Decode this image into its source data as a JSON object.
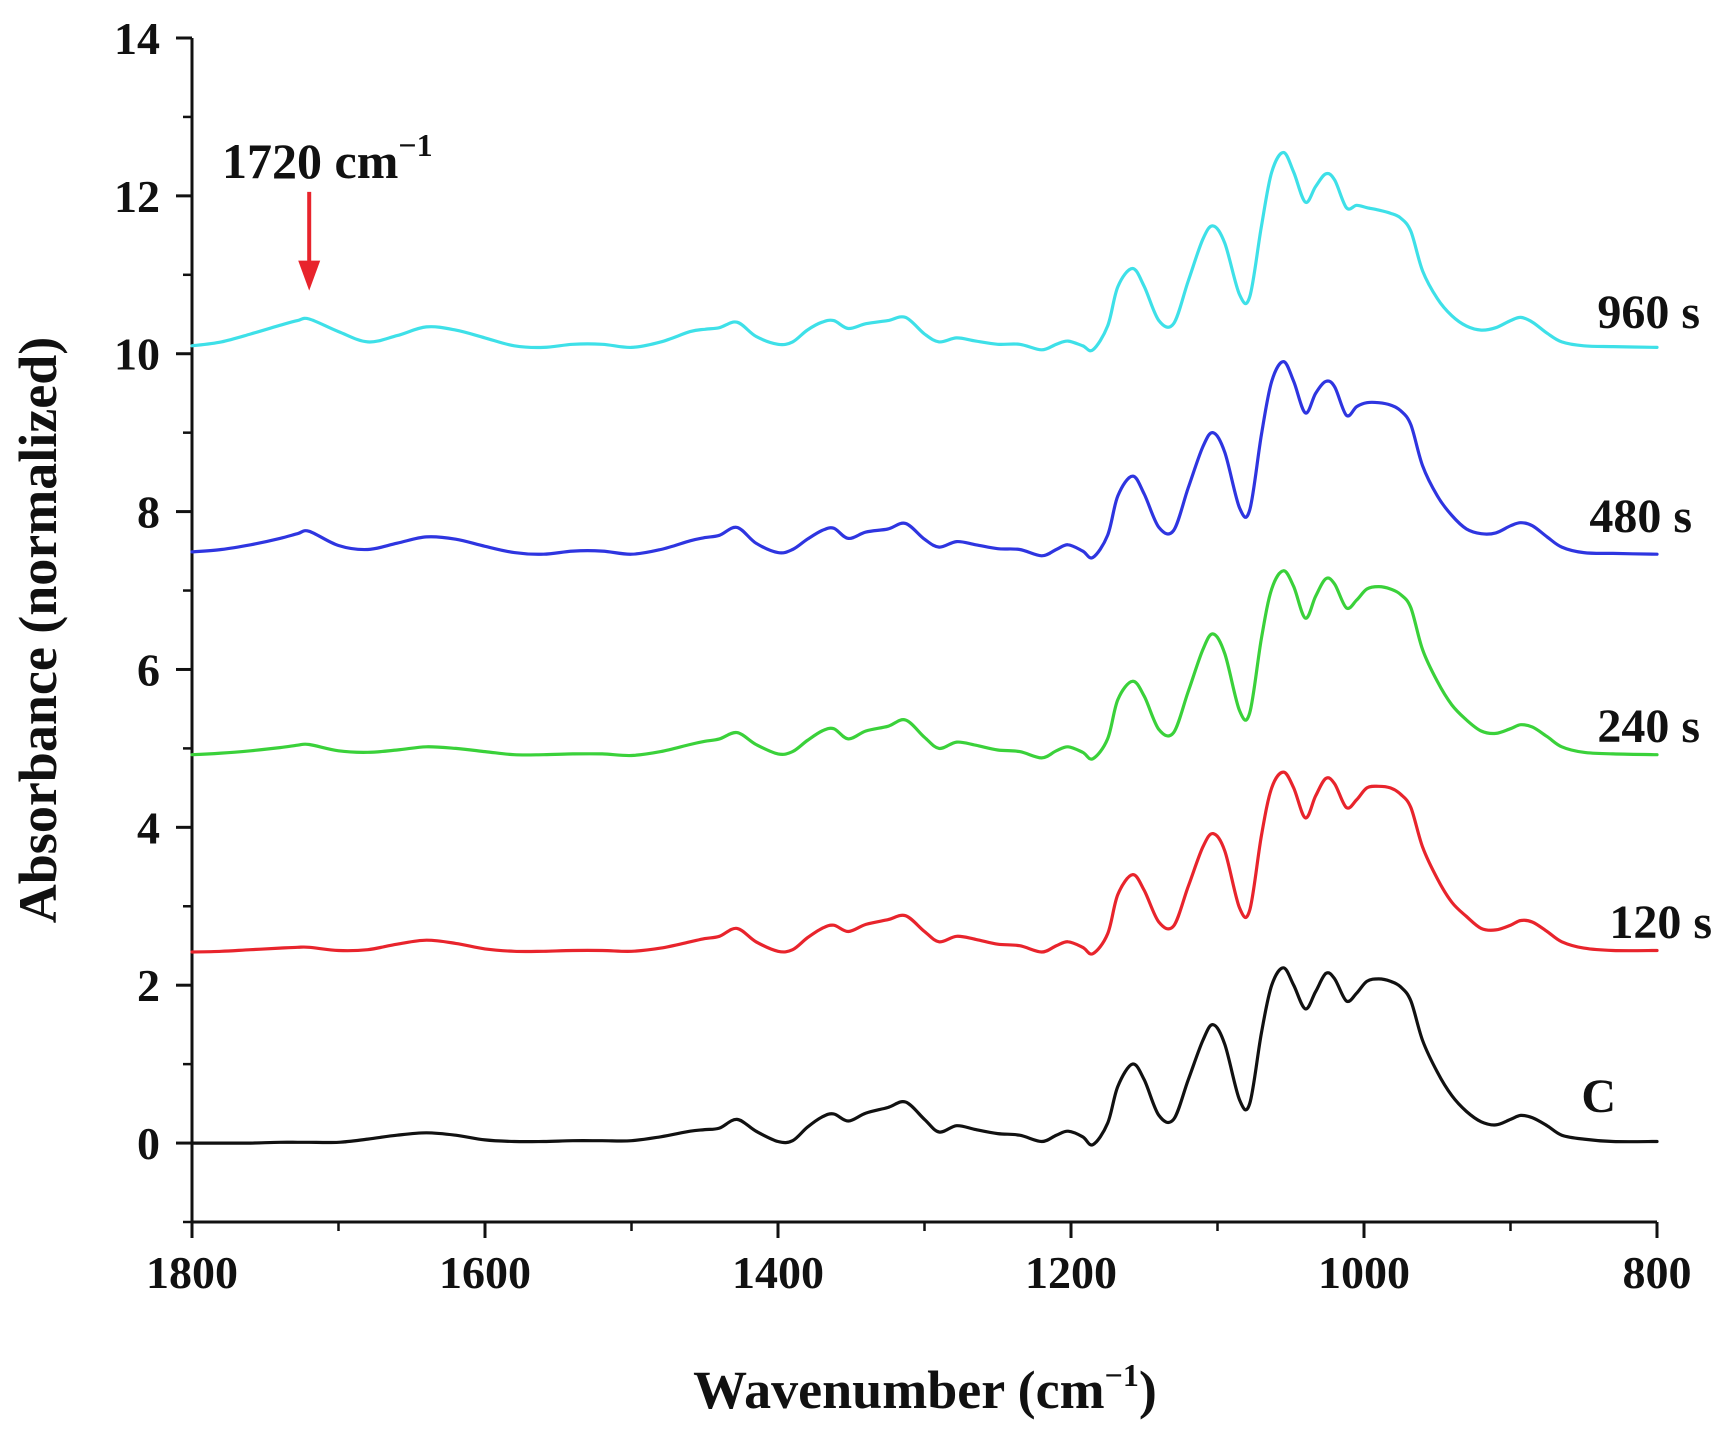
{
  "chart_data": {
    "type": "line",
    "title": "",
    "xlabel": "Wavenumber (cm",
    "xlabel_sup": "−1",
    "xlabel_close": ")",
    "ylabel": "Absorbance (normalized)",
    "xlim": [
      1800,
      800
    ],
    "ylim": [
      -1,
      14
    ],
    "x_reversed": true,
    "grid": false,
    "xticks": [
      "1800",
      "1600",
      "1400",
      "1200",
      "1000",
      "800"
    ],
    "yticks": [
      "0",
      "2",
      "4",
      "6",
      "8",
      "10",
      "12",
      "14"
    ],
    "x": [
      1800,
      1780,
      1760,
      1740,
      1728,
      1720,
      1700,
      1680,
      1660,
      1640,
      1620,
      1600,
      1580,
      1560,
      1540,
      1520,
      1500,
      1480,
      1460,
      1450,
      1440,
      1428,
      1415,
      1400,
      1390,
      1380,
      1370,
      1362,
      1352,
      1340,
      1325,
      1313,
      1300,
      1290,
      1278,
      1265,
      1250,
      1235,
      1220,
      1210,
      1202,
      1192,
      1185,
      1175,
      1168,
      1158,
      1150,
      1140,
      1130,
      1120,
      1110,
      1103,
      1095,
      1085,
      1078,
      1070,
      1063,
      1055,
      1048,
      1040,
      1033,
      1026,
      1020,
      1012,
      1005,
      998,
      990,
      982,
      975,
      968,
      960,
      950,
      940,
      930,
      920,
      910,
      900,
      893,
      885,
      875,
      865,
      850,
      830,
      800
    ],
    "series": [
      {
        "name": "C",
        "label": "C",
        "color": "#111111",
        "values": [
          0.0,
          0.0,
          0.0,
          0.01,
          0.01,
          0.01,
          0.01,
          0.05,
          0.1,
          0.13,
          0.1,
          0.04,
          0.02,
          0.02,
          0.03,
          0.03,
          0.03,
          0.08,
          0.15,
          0.17,
          0.19,
          0.3,
          0.15,
          0.02,
          0.03,
          0.2,
          0.33,
          0.37,
          0.28,
          0.38,
          0.45,
          0.52,
          0.3,
          0.14,
          0.22,
          0.17,
          0.12,
          0.1,
          0.02,
          0.1,
          0.15,
          0.08,
          -0.02,
          0.25,
          0.72,
          1.0,
          0.8,
          0.35,
          0.3,
          0.8,
          1.3,
          1.5,
          1.25,
          0.55,
          0.5,
          1.4,
          2.0,
          2.22,
          2.0,
          1.7,
          1.92,
          2.15,
          2.08,
          1.8,
          1.9,
          2.05,
          2.08,
          2.05,
          1.98,
          1.8,
          1.3,
          0.9,
          0.6,
          0.4,
          0.27,
          0.23,
          0.3,
          0.35,
          0.32,
          0.22,
          0.1,
          0.05,
          0.02,
          0.02
        ]
      },
      {
        "name": "120 s",
        "label": "120 s",
        "color": "#e8242c",
        "values": [
          2.42,
          2.43,
          2.45,
          2.47,
          2.48,
          2.48,
          2.44,
          2.45,
          2.52,
          2.57,
          2.53,
          2.46,
          2.43,
          2.43,
          2.44,
          2.44,
          2.43,
          2.47,
          2.55,
          2.59,
          2.62,
          2.72,
          2.55,
          2.43,
          2.45,
          2.6,
          2.72,
          2.76,
          2.68,
          2.77,
          2.83,
          2.88,
          2.68,
          2.55,
          2.62,
          2.58,
          2.52,
          2.5,
          2.42,
          2.5,
          2.55,
          2.48,
          2.4,
          2.65,
          3.15,
          3.4,
          3.2,
          2.8,
          2.75,
          3.25,
          3.75,
          3.92,
          3.7,
          2.98,
          2.95,
          3.9,
          4.5,
          4.7,
          4.5,
          4.12,
          4.4,
          4.62,
          4.55,
          4.25,
          4.35,
          4.5,
          4.52,
          4.5,
          4.42,
          4.25,
          3.75,
          3.35,
          3.05,
          2.87,
          2.72,
          2.7,
          2.76,
          2.82,
          2.8,
          2.68,
          2.55,
          2.47,
          2.44,
          2.44
        ]
      },
      {
        "name": "240 s",
        "label": "240 s",
        "color": "#3ad13a",
        "values": [
          4.92,
          4.94,
          4.97,
          5.01,
          5.04,
          5.05,
          4.97,
          4.95,
          4.98,
          5.02,
          5.0,
          4.96,
          4.92,
          4.92,
          4.93,
          4.93,
          4.91,
          4.96,
          5.05,
          5.09,
          5.12,
          5.2,
          5.05,
          4.93,
          4.96,
          5.1,
          5.22,
          5.25,
          5.12,
          5.22,
          5.28,
          5.36,
          5.14,
          5.0,
          5.08,
          5.04,
          4.98,
          4.96,
          4.88,
          4.97,
          5.02,
          4.95,
          4.87,
          5.12,
          5.62,
          5.85,
          5.66,
          5.24,
          5.2,
          5.72,
          6.25,
          6.45,
          6.2,
          5.48,
          5.45,
          6.4,
          7.02,
          7.25,
          7.05,
          6.65,
          6.93,
          7.15,
          7.08,
          6.78,
          6.88,
          7.02,
          7.05,
          7.02,
          6.95,
          6.78,
          6.25,
          5.85,
          5.55,
          5.36,
          5.22,
          5.19,
          5.25,
          5.3,
          5.27,
          5.15,
          5.02,
          4.95,
          4.93,
          4.92
        ]
      },
      {
        "name": "480 s",
        "label": "480 s",
        "color": "#2e35e0",
        "values": [
          7.49,
          7.52,
          7.58,
          7.66,
          7.72,
          7.75,
          7.57,
          7.52,
          7.6,
          7.68,
          7.65,
          7.56,
          7.48,
          7.46,
          7.5,
          7.5,
          7.46,
          7.52,
          7.63,
          7.67,
          7.7,
          7.8,
          7.6,
          7.48,
          7.52,
          7.65,
          7.76,
          7.79,
          7.66,
          7.74,
          7.78,
          7.85,
          7.65,
          7.55,
          7.62,
          7.58,
          7.53,
          7.52,
          7.44,
          7.52,
          7.58,
          7.5,
          7.42,
          7.7,
          8.2,
          8.45,
          8.22,
          7.8,
          7.76,
          8.3,
          8.82,
          9.0,
          8.75,
          8.05,
          8.02,
          8.98,
          9.65,
          9.9,
          9.65,
          9.25,
          9.5,
          9.65,
          9.58,
          9.22,
          9.33,
          9.38,
          9.38,
          9.35,
          9.28,
          9.1,
          8.58,
          8.2,
          7.95,
          7.78,
          7.72,
          7.73,
          7.82,
          7.86,
          7.82,
          7.68,
          7.55,
          7.48,
          7.47,
          7.46
        ]
      },
      {
        "name": "960 s",
        "label": "960 s",
        "color": "#3ee0e8",
        "values": [
          10.1,
          10.15,
          10.25,
          10.36,
          10.42,
          10.44,
          10.28,
          10.15,
          10.23,
          10.34,
          10.3,
          10.2,
          10.1,
          10.08,
          10.12,
          10.12,
          10.08,
          10.15,
          10.28,
          10.31,
          10.33,
          10.4,
          10.22,
          10.12,
          10.15,
          10.3,
          10.4,
          10.42,
          10.32,
          10.38,
          10.42,
          10.46,
          10.25,
          10.15,
          10.2,
          10.16,
          10.12,
          10.12,
          10.05,
          10.12,
          10.16,
          10.1,
          10.05,
          10.35,
          10.85,
          11.08,
          10.85,
          10.42,
          10.38,
          10.92,
          11.45,
          11.62,
          11.4,
          10.75,
          10.72,
          11.62,
          12.3,
          12.55,
          12.3,
          11.92,
          12.12,
          12.28,
          12.2,
          11.85,
          11.88,
          11.85,
          11.82,
          11.78,
          11.72,
          11.55,
          11.05,
          10.7,
          10.48,
          10.35,
          10.3,
          10.33,
          10.42,
          10.46,
          10.4,
          10.26,
          10.15,
          10.1,
          10.09,
          10.08
        ]
      }
    ],
    "annotations": [
      {
        "text": "1720 cm",
        "sup": "−1",
        "x": 1720,
        "arrow_color": "#e8242c",
        "arrow_top": 12.05,
        "arrow_bottom": 10.8
      }
    ]
  }
}
